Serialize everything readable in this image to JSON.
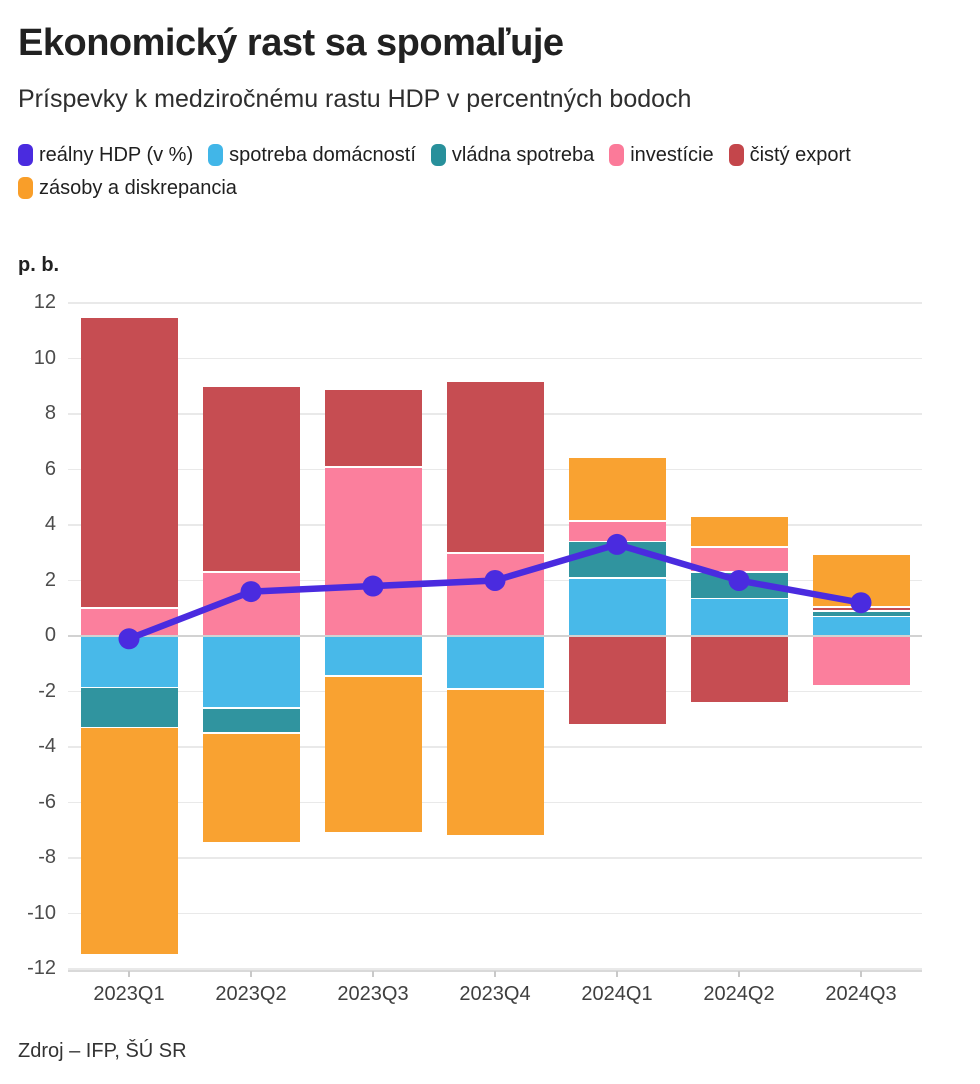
{
  "header": {
    "title": "Ekonomický rast sa spomaľuje",
    "subtitle": "Príspevky k medziročnému rastu HDP v percentných bodoch"
  },
  "chart_data": {
    "type": "bar",
    "subtype": "stacked-bars-with-line-overlay",
    "categories": [
      "2023Q1",
      "2023Q2",
      "2023Q3",
      "2023Q4",
      "2024Q1",
      "2024Q2",
      "2024Q3"
    ],
    "series": [
      {
        "name": "spotreba domácností",
        "color": "#41b6e8",
        "values": [
          -1.85,
          -2.6,
          -1.45,
          -1.9,
          2.1,
          1.35,
          0.7
        ]
      },
      {
        "name": "vládna spotreba",
        "color": "#28909b",
        "values": [
          -1.45,
          -0.9,
          0,
          0,
          1.3,
          0.95,
          0.2
        ]
      },
      {
        "name": "investície",
        "color": "#fb7a99",
        "values": [
          1.0,
          2.3,
          6.1,
          3.0,
          0.75,
          0.9,
          -1.8
        ]
      },
      {
        "name": "čistý export",
        "color": "#c4464b",
        "values": [
          10.5,
          6.7,
          2.8,
          6.2,
          -3.2,
          -2.4,
          0.15
        ]
      },
      {
        "name": "zásoby a diskrepancia",
        "color": "#f99e29",
        "values": [
          -8.2,
          -3.95,
          -5.65,
          -5.3,
          2.3,
          1.1,
          1.9
        ]
      }
    ],
    "line": {
      "name": "reálny HDP (v %)",
      "color": "#4a2bdf",
      "values": [
        -0.1,
        1.6,
        1.8,
        2.0,
        3.3,
        2.0,
        1.2
      ]
    },
    "ylabel": "p. b.",
    "ylim": [
      -12,
      12
    ],
    "ytick_step": 2,
    "grid": true,
    "legend_position": "top"
  },
  "footer": {
    "source": "Zdroj – IFP, ŠÚ SR"
  }
}
